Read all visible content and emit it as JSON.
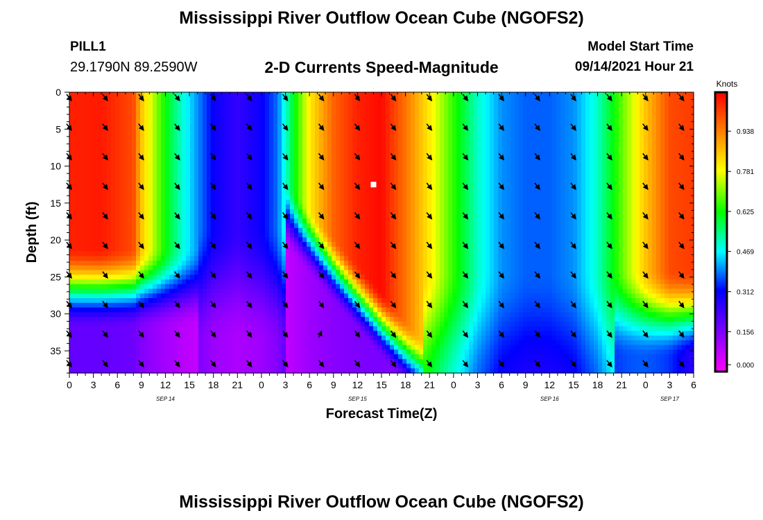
{
  "header": {
    "title": "Mississippi River Outflow Ocean Cube (NGOFS2)",
    "station_id": "PILL1",
    "coordinates": "29.1790N  89.2590W",
    "subtitle": "2-D Currents Speed-Magnitude",
    "model_start_label": "Model Start Time",
    "model_start_value": "09/14/2021 Hour 21"
  },
  "footer": {
    "title": "Mississippi River Outflow Ocean Cube (NGOFS2)"
  },
  "chart_data": {
    "type": "heatmap",
    "title": "2-D Currents Speed-Magnitude",
    "xlabel": "Forecast Time(Z)",
    "ylabel": "Depth (ft)",
    "x_range_hours": [
      0,
      78
    ],
    "y_range_ft": [
      0,
      38
    ],
    "x_ticks": [
      {
        "hour": 0,
        "label": "0"
      },
      {
        "hour": 3,
        "label": "3"
      },
      {
        "hour": 6,
        "label": "6"
      },
      {
        "hour": 9,
        "label": "9"
      },
      {
        "hour": 12,
        "label": "12"
      },
      {
        "hour": 15,
        "label": "15"
      },
      {
        "hour": 18,
        "label": "18"
      },
      {
        "hour": 21,
        "label": "21"
      },
      {
        "hour": 24,
        "label": "0"
      },
      {
        "hour": 27,
        "label": "3"
      },
      {
        "hour": 30,
        "label": "6"
      },
      {
        "hour": 33,
        "label": "9"
      },
      {
        "hour": 36,
        "label": "12"
      },
      {
        "hour": 39,
        "label": "15"
      },
      {
        "hour": 42,
        "label": "18"
      },
      {
        "hour": 45,
        "label": "21"
      },
      {
        "hour": 48,
        "label": "0"
      },
      {
        "hour": 51,
        "label": "3"
      },
      {
        "hour": 54,
        "label": "6"
      },
      {
        "hour": 57,
        "label": "9"
      },
      {
        "hour": 60,
        "label": "12"
      },
      {
        "hour": 63,
        "label": "15"
      },
      {
        "hour": 66,
        "label": "18"
      },
      {
        "hour": 69,
        "label": "21"
      },
      {
        "hour": 72,
        "label": "0"
      },
      {
        "hour": 75,
        "label": "3"
      },
      {
        "hour": 78,
        "label": "6"
      }
    ],
    "date_labels": [
      {
        "hour": 12,
        "label": "SEP 14"
      },
      {
        "hour": 36,
        "label": "SEP 15"
      },
      {
        "hour": 60,
        "label": "SEP 16"
      },
      {
        "hour": 75,
        "label": "SEP 17"
      }
    ],
    "y_ticks": [
      0,
      5,
      10,
      15,
      20,
      25,
      30,
      35
    ],
    "colorbar": {
      "label": "Knots",
      "range": [
        0,
        1.09
      ],
      "ticks": [
        "0.000",
        "0.156",
        "0.312",
        "0.469",
        "0.625",
        "0.781",
        "0.938"
      ],
      "colors": [
        "#ff00ff",
        "#8000ff",
        "#0000ff",
        "#00ffff",
        "#00ff00",
        "#ffff00",
        "#ff8000",
        "#ff0000"
      ]
    },
    "vector_times_hours": [
      0,
      4.5,
      9,
      13.5,
      18,
      22.5,
      27,
      31.5,
      36,
      40.5,
      45,
      49.5,
      54,
      58.5,
      63,
      67.5,
      72,
      76.5
    ],
    "vector_depths_ft": [
      0,
      4,
      8,
      12,
      16,
      20,
      24,
      28,
      32,
      36
    ],
    "marker": {
      "hour": 38,
      "depth_ft": 12.5
    }
  }
}
